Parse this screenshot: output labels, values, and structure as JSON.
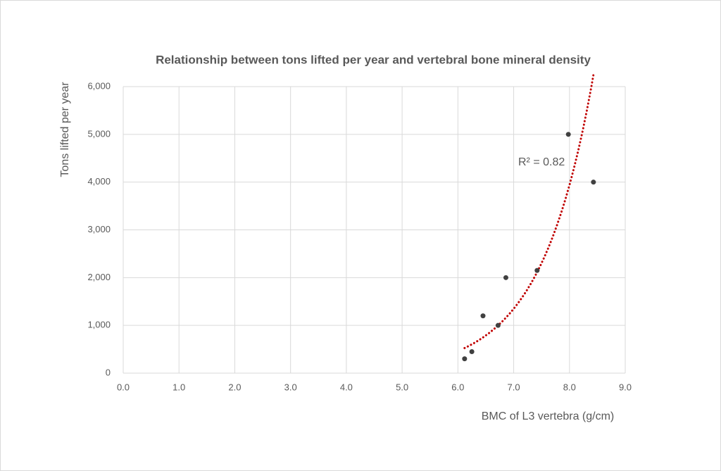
{
  "chart_data": {
    "type": "scatter",
    "title": "Relationship between tons lifted per year and vertebral bone mineral density",
    "x_label": "BMC of L3 vertebra (g/cm)",
    "y_label": "Tons lifted per year",
    "series": [
      {
        "name": "Tons lifted",
        "color": "#404040",
        "x": [
          6.12,
          6.25,
          6.45,
          6.72,
          6.86,
          7.42,
          7.98,
          8.43
        ],
        "values": [
          300,
          450,
          1200,
          1000,
          2000,
          2150,
          5000,
          4000
        ]
      }
    ],
    "trendline": {
      "kind": "exponential",
      "color": "#c00000",
      "annotation": "R² = 0.82"
    },
    "xlim": [
      0,
      9
    ],
    "xticks": [
      {
        "value": 0,
        "label": "0.0"
      },
      {
        "value": 1,
        "label": "1.0"
      },
      {
        "value": 2,
        "label": "2.0"
      },
      {
        "value": 3,
        "label": "3.0"
      },
      {
        "value": 4,
        "label": "4.0"
      },
      {
        "value": 5,
        "label": "5.0"
      },
      {
        "value": 6,
        "label": "6.0"
      },
      {
        "value": 7,
        "label": "7.0"
      },
      {
        "value": 8,
        "label": "8.0"
      },
      {
        "value": 9,
        "label": "9.0"
      }
    ],
    "ylim": [
      0,
      6000
    ],
    "yticks": [
      0,
      {
        "value": 1000,
        "label": "1,000"
      },
      {
        "value": 2000,
        "label": "2,000"
      },
      {
        "value": 3000,
        "label": "3,000"
      },
      {
        "value": 4000,
        "label": "4,000"
      },
      {
        "value": 5000,
        "label": "5,000"
      },
      {
        "value": 6000,
        "label": "6,000"
      }
    ],
    "grid": true
  }
}
